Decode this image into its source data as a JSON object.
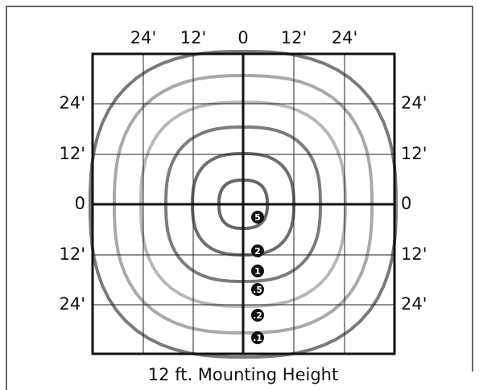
{
  "top_labels": [
    "24'",
    "12'",
    "0",
    "12'",
    "24'"
  ],
  "left_labels": [
    "24'",
    "12'",
    "0",
    "12'",
    "24'"
  ],
  "right_labels": [
    "24'",
    "12'",
    "0",
    "12'",
    "24'"
  ],
  "contour_labels": [
    "5",
    "2",
    "1",
    ".5",
    ".2",
    ".1"
  ],
  "caption": "12 ft. Mounting Height"
}
